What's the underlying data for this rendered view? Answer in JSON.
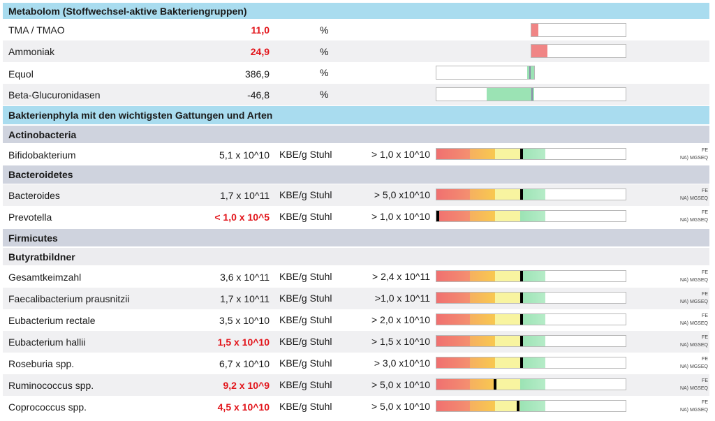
{
  "section_metabolom": "Metabolom (Stoffwechsel-aktive Bakteriengruppen)",
  "metabolom": [
    {
      "name": "TMA / TMAO",
      "value": "11,0",
      "unit": "%",
      "elevated": true,
      "bar_color": "#f08585"
    },
    {
      "name": "Ammoniak",
      "value": "24,9",
      "unit": "%",
      "elevated": true,
      "bar_color": "#f08585"
    },
    {
      "name": "Equol",
      "value": "386,9",
      "unit": "%",
      "elevated": false,
      "bar_color": "#9be3b4"
    },
    {
      "name": "Beta-Glucuronidasen",
      "value": "-46,8",
      "unit": "%",
      "elevated": false,
      "bar_color": "#9be3b4"
    }
  ],
  "section_phyla": "Bakterienphyla mit den wichtigsten Gattungen und Arten",
  "method_line1": "FE",
  "method_line2": "NA) MGSEQ",
  "gauge_colors": {
    "red": "#f07070",
    "orange": "#f8c850",
    "yellow": "#f8f4a0",
    "green": "#9be3b4",
    "marker": "#000000",
    "value_red": "#e2141a"
  },
  "groups": {
    "actinobacteria": "Actinobacteria",
    "bacteroidetes": "Bacteroidetes",
    "firmicutes": "Firmicutes",
    "butyrat": "Butyratbildner"
  },
  "rows": [
    {
      "name": "Bifidobakterium",
      "value": "5,1 x 10^10",
      "unit": "KBE/g Stuhl",
      "ref": "> 1,0 x 10^10",
      "low": false,
      "marker_fraction": 0.44
    },
    {
      "name": "Bacteroides",
      "value": "1,7 x 10^11",
      "unit": "KBE/g Stuhl",
      "ref": "> 5,0 x10^10",
      "low": false,
      "marker_fraction": 0.44
    },
    {
      "name": "Prevotella",
      "value": "< 1,0 x 10^5",
      "unit": "KBE/g Stuhl",
      "ref": "> 1,0 x 10^10",
      "low": true,
      "marker_fraction": 0.0
    },
    {
      "name": "Gesamtkeimzahl",
      "value": "3,6 x 10^11",
      "unit": "KBE/g Stuhl",
      "ref": "> 2,4 x 10^11",
      "low": false,
      "marker_fraction": 0.44
    },
    {
      "name": "Faecalibacterium prausnitzii",
      "value": "1,7 x 10^11",
      "unit": "KBE/g Stuhl",
      "ref": ">1,0 x 10^11",
      "low": false,
      "marker_fraction": 0.44
    },
    {
      "name": "Eubacterium rectale",
      "value": "3,5 x 10^10",
      "unit": "KBE/g Stuhl",
      "ref": "> 2,0 x 10^10",
      "low": false,
      "marker_fraction": 0.44
    },
    {
      "name": "Eubacterium hallii",
      "value": "1,5 x 10^10",
      "unit": "KBE/g Stuhl",
      "ref": "> 1,5 x 10^10",
      "low": true,
      "marker_fraction": 0.44
    },
    {
      "name": "Roseburia spp.",
      "value": "6,7 x 10^10",
      "unit": "KBE/g Stuhl",
      "ref": "> 3,0 x10^10",
      "low": false,
      "marker_fraction": 0.44
    },
    {
      "name": "Ruminococcus spp.",
      "value": "9,2 x 10^9",
      "unit": "KBE/g Stuhl",
      "ref": "> 5,0 x 10^10",
      "low": true,
      "marker_fraction": 0.3
    },
    {
      "name": "Coprococcus spp.",
      "value": "4,5 x 10^10",
      "unit": "KBE/g Stuhl",
      "ref": "> 5,0 x 10^10",
      "low": true,
      "marker_fraction": 0.42
    }
  ]
}
